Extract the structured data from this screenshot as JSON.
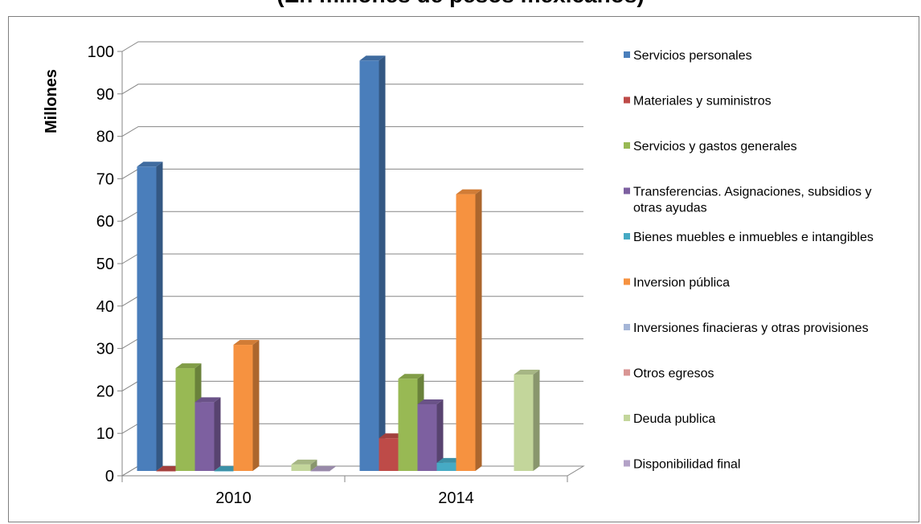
{
  "chart_data": {
    "type": "bar",
    "title": "(En millones de pesos mexicanos)",
    "ylabel": "Millones",
    "xlabel": "",
    "ylim": [
      0,
      100
    ],
    "yticks": [
      0,
      10,
      20,
      30,
      40,
      50,
      60,
      70,
      80,
      90,
      100
    ],
    "categories": [
      "2010",
      "2014"
    ],
    "legend_position": "right",
    "grid": true,
    "series": [
      {
        "name": "Servicios personales",
        "color": "#4a7ebb",
        "values": [
          74,
          99
        ]
      },
      {
        "name": "Materiales y suministros",
        "color": "#be4b48",
        "values": [
          0.3,
          10
        ]
      },
      {
        "name": "Servicios y gastos generales",
        "color": "#98b954",
        "values": [
          26.5,
          24
        ]
      },
      {
        "name": "Transferencias. Asignaciones, subsidios y otras ayudas",
        "color": "#7d60a0",
        "values": [
          18.5,
          18
        ]
      },
      {
        "name": "Bienes muebles e inmuebles e intangibles",
        "color": "#46aac4",
        "values": [
          1.8,
          4.2
        ]
      },
      {
        "name": "Inversion pública",
        "color": "#f69240",
        "values": [
          32,
          67.5
        ]
      },
      {
        "name": "Inversiones finacieras y otras provisiones",
        "color": "#a5b6d7",
        "values": [
          0,
          0
        ]
      },
      {
        "name": "Otros egresos",
        "color": "#d99694",
        "values": [
          0,
          0
        ]
      },
      {
        "name": "Deuda publica",
        "color": "#c3d69b",
        "values": [
          3.8,
          25
        ]
      },
      {
        "name": "Disponibilidad final",
        "color": "#b3a2c7",
        "values": [
          0.8,
          0
        ]
      }
    ]
  }
}
